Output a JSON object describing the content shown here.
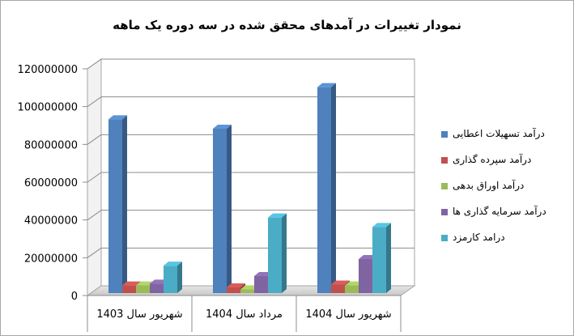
{
  "chart_data": {
    "type": "bar",
    "title": "نمودار تغییرات در آمدهای  محقق شده در سه دوره یک ماهه",
    "categories": [
      "شهریور سال 1403",
      "مرداد سال 1404",
      "شهریور سال 1404"
    ],
    "series": [
      {
        "name": "درآمد تسهیلات اعطایی",
        "color": "#4f81bd",
        "values": [
          92000000,
          87000000,
          109000000
        ]
      },
      {
        "name": "درآمد سپرده گذاری",
        "color": "#c0504d",
        "values": [
          4000000,
          3000000,
          4500000
        ]
      },
      {
        "name": "درآمد اوراق بدهی",
        "color": "#9bbb59",
        "values": [
          4000000,
          2000000,
          4000000
        ]
      },
      {
        "name": "درآمد سرمایه گذاری ها",
        "color": "#8064a2",
        "values": [
          5000000,
          9000000,
          18000000
        ]
      },
      {
        "name": "درامد کارمزد",
        "color": "#4bacc6",
        "values": [
          14500000,
          40000000,
          35000000
        ]
      }
    ],
    "yticks": [
      "0",
      "20000000",
      "40000000",
      "60000000",
      "80000000",
      "100000000",
      "120000000"
    ],
    "ylim": [
      0,
      120000000
    ],
    "grid": true,
    "legend_position": "right"
  }
}
